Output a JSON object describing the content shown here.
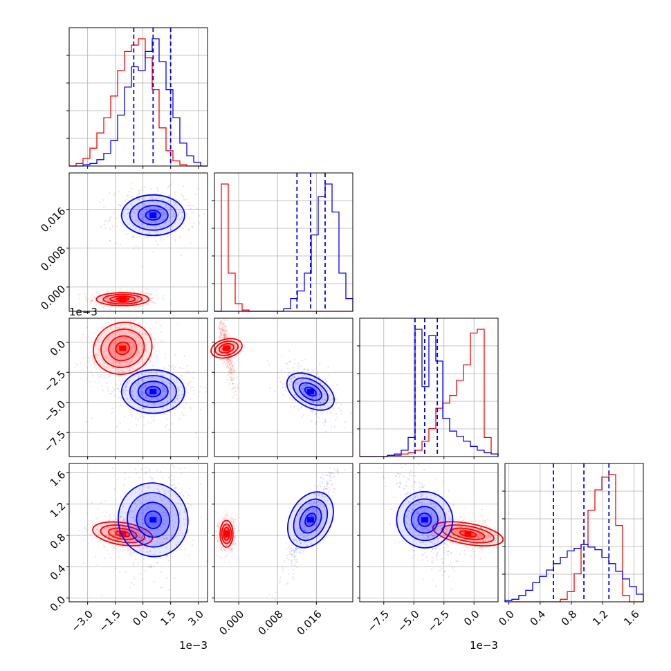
{
  "colors": {
    "red": "#ff0000",
    "blue": "#0000ff",
    "grid": "#b0b0b0",
    "frame": "#000000"
  },
  "chart_data": {
    "type": "corner",
    "grid": true,
    "params": [
      {
        "id": "p0",
        "range": [
          -4.0,
          3.5
        ],
        "ticks": [
          -3.0,
          -1.5,
          0.0,
          1.5,
          3.0
        ],
        "tick_labels": [
          "−3.0",
          "−1.5",
          "0.0",
          "1.5",
          "3.0"
        ],
        "offset_label": "1e−3"
      },
      {
        "id": "p1",
        "range": [
          -0.005,
          0.0235
        ],
        "ticks": [
          0.0,
          0.008,
          0.016
        ],
        "tick_labels": [
          "0.000",
          "0.008",
          "0.016"
        ],
        "offset_label": ""
      },
      {
        "id": "p2",
        "range": [
          -9.5,
          2.0
        ],
        "ticks": [
          -7.5,
          -5.0,
          -2.5,
          0.0
        ],
        "tick_labels": [
          "−7.5",
          "−5.0",
          "−2.5",
          "0.0"
        ],
        "offset_label": "1e−3"
      },
      {
        "id": "p3",
        "range": [
          -0.05,
          1.72
        ],
        "ticks": [
          0.0,
          0.4,
          0.8,
          1.2,
          1.6
        ],
        "tick_labels": [
          "0.0",
          "0.4",
          "0.8",
          "1.2",
          "1.6"
        ],
        "offset_label": ""
      }
    ],
    "series": [
      {
        "color": "red",
        "means": [
          -1.1,
          -0.0025,
          -0.5,
          0.82
        ],
        "sds": [
          0.75,
          0.0007,
          1.3,
          0.09
        ],
        "hist": [
          [
            0.0,
            0.02,
            0.06,
            0.14,
            0.26,
            0.38,
            0.55,
            0.75,
            0.9,
            0.95,
            1.0,
            0.85,
            0.6,
            0.3,
            0.12,
            0.04,
            0.01,
            0.0,
            0.0,
            0.0
          ],
          [
            0.0,
            1.0,
            0.3,
            0.06,
            0.01,
            0.0,
            0.0,
            0.0,
            0.0,
            0.0,
            0.0,
            0.0,
            0.0,
            0.0,
            0.0,
            0.0,
            0.0,
            0.0,
            0.0,
            0.0
          ],
          [
            0.0,
            0.0,
            0.0,
            0.0,
            0.01,
            0.01,
            0.02,
            0.03,
            0.05,
            0.12,
            0.22,
            0.38,
            0.42,
            0.48,
            0.6,
            0.72,
            0.97,
            1.0,
            0.15,
            0.02
          ],
          [
            0.0,
            0.0,
            0.0,
            0.0,
            0.0,
            0.0,
            0.0,
            0.0,
            0.02,
            0.08,
            0.22,
            0.45,
            0.72,
            0.88,
            0.98,
            1.0,
            0.6,
            0.05,
            0.0,
            0.0
          ]
        ]
      },
      {
        "color": "blue",
        "means": [
          0.55,
          0.0148,
          -4.1,
          1.0
        ],
        "sds": [
          0.9,
          0.0022,
          0.95,
          0.28
        ],
        "quantiles": [
          [
            -0.5,
            0.55,
            1.5
          ],
          [
            0.012,
            0.0148,
            0.0178
          ],
          [
            -4.9,
            -4.1,
            -3.05
          ],
          [
            0.57,
            0.96,
            1.28
          ]
        ],
        "hist": [
          [
            0.0,
            0.0,
            0.01,
            0.02,
            0.05,
            0.1,
            0.2,
            0.4,
            0.62,
            0.78,
            0.75,
            0.9,
            1.0,
            0.82,
            0.6,
            0.38,
            0.18,
            0.08,
            0.03,
            0.0
          ],
          [
            0.0,
            0.0,
            0.0,
            0.0,
            0.0,
            0.0,
            0.0,
            0.0,
            0.0,
            0.0,
            0.02,
            0.1,
            0.16,
            0.3,
            0.6,
            0.9,
            1.0,
            0.78,
            0.3,
            0.1
          ],
          [
            0.0,
            0.0,
            0.0,
            0.0,
            0.01,
            0.02,
            0.05,
            0.15,
            1.0,
            0.55,
            0.95,
            0.75,
            0.3,
            0.2,
            0.16,
            0.12,
            0.08,
            0.05,
            0.03,
            0.02
          ],
          [
            0.01,
            0.02,
            0.05,
            0.09,
            0.15,
            0.2,
            0.25,
            0.3,
            0.35,
            0.4,
            0.42,
            0.45,
            0.43,
            0.41,
            0.35,
            0.3,
            0.24,
            0.18,
            0.12,
            0.06
          ]
        ]
      }
    ]
  }
}
